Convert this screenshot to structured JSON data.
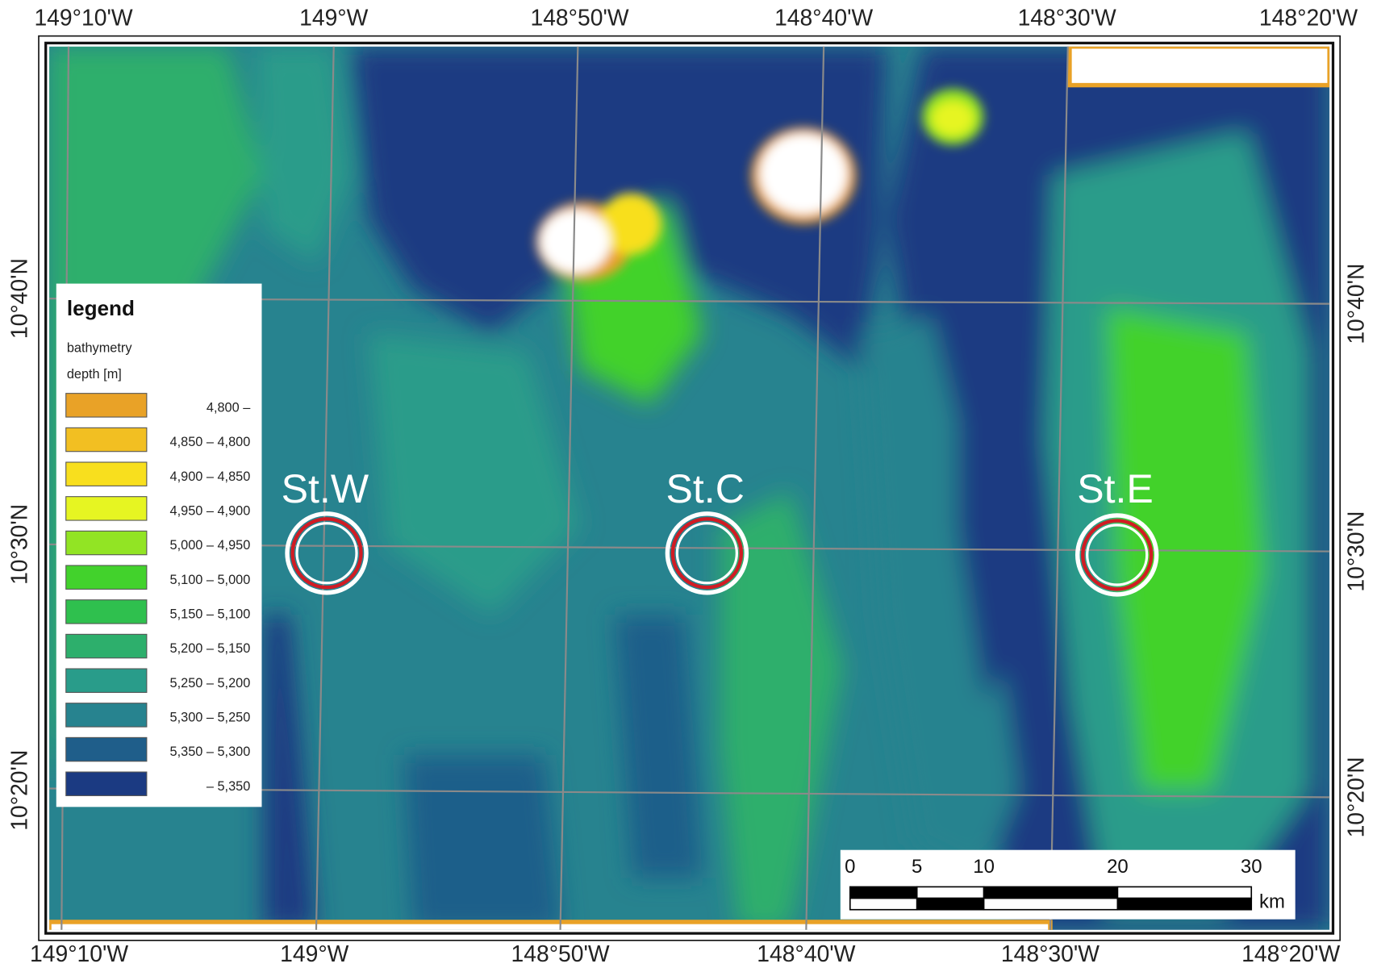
{
  "map": {
    "top_labels": [
      "149°10'W",
      "149°W",
      "148°50'W",
      "148°40'W",
      "148°30'W",
      "148°20'W"
    ],
    "bottom_labels": [
      "149°10'W",
      "149°W",
      "148°50'W",
      "148°40'W",
      "148°30'W",
      "148°20'W"
    ],
    "left_labels": [
      "10°40'N",
      "10°30'N",
      "10°20'N"
    ],
    "right_labels": [
      "10°40'N",
      "10°30'N",
      "10°20'N"
    ],
    "legend": {
      "title": "legend",
      "subtitle": "bathymetry",
      "unit": "depth [m]",
      "items": [
        {
          "label": "4,800 –",
          "color": "#e9a227"
        },
        {
          "label": "4,850 – 4,800",
          "color": "#f2bf22"
        },
        {
          "label": "4,900 – 4,850",
          "color": "#f8df1e"
        },
        {
          "label": "4,950 – 4,900",
          "color": "#e6f522"
        },
        {
          "label": "5,000 – 4,950",
          "color": "#92e424"
        },
        {
          "label": "5,100 – 5,000",
          "color": "#42d22c"
        },
        {
          "label": "5,150 – 5,100",
          "color": "#2fc04e"
        },
        {
          "label": "5,200 – 5,150",
          "color": "#2daf6c"
        },
        {
          "label": "5,250 – 5,200",
          "color": "#299c8a"
        },
        {
          "label": "5,300 – 5,250",
          "color": "#27838f"
        },
        {
          "label": "5,350 – 5,300",
          "color": "#1f5e8a"
        },
        {
          "label": "– 5,350",
          "color": "#1b3a82"
        }
      ]
    },
    "stations": [
      {
        "label": "St.W"
      },
      {
        "label": "St.C"
      },
      {
        "label": "St.E"
      }
    ],
    "scale_bar": {
      "ticks": [
        0,
        5,
        10,
        20,
        30
      ],
      "unit": "km"
    }
  }
}
